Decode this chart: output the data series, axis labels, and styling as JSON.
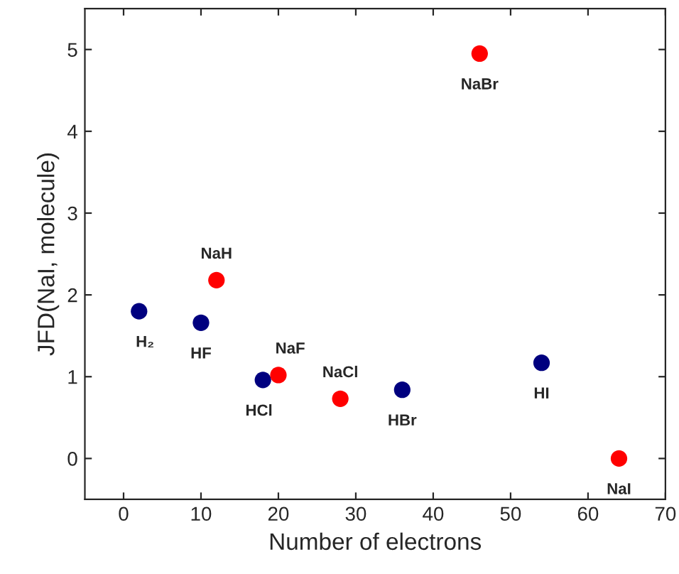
{
  "chart_data": {
    "type": "scatter",
    "xlabel": "Number of electrons",
    "ylabel": "JFD(NaI, molecule)",
    "xlim": [
      -5,
      70
    ],
    "xticks": [
      0,
      10,
      20,
      30,
      40,
      50,
      60,
      70
    ],
    "ylim": [
      -0.5,
      5.5
    ],
    "yticks": [
      0,
      1,
      2,
      3,
      4,
      5
    ],
    "grid": false,
    "marker": "circle",
    "series": [
      {
        "color": "#00007f",
        "x": [
          2,
          10,
          18,
          36,
          54
        ],
        "values": [
          1.8,
          1.66,
          0.96,
          0.84,
          1.17
        ]
      },
      {
        "color": "#ff0000",
        "x": [
          12,
          20,
          28,
          46,
          64
        ],
        "values": [
          2.18,
          1.02,
          0.73,
          4.95,
          0.0
        ]
      }
    ],
    "annotations": [
      {
        "text": "H₂",
        "x": 2,
        "y": 1.8
      },
      {
        "text": "HF",
        "x": 10,
        "y": 1.66
      },
      {
        "text": "HCl",
        "x": 18,
        "y": 0.96
      },
      {
        "text": "HBr",
        "x": 36,
        "y": 0.84
      },
      {
        "text": "HI",
        "x": 54,
        "y": 1.17
      },
      {
        "text": "NaH",
        "x": 12,
        "y": 2.18
      },
      {
        "text": "NaF",
        "x": 20,
        "y": 1.02
      },
      {
        "text": "NaCl",
        "x": 28,
        "y": 0.73
      },
      {
        "text": "NaBr",
        "x": 46,
        "y": 4.95
      },
      {
        "text": "NaI",
        "x": 64,
        "y": 0.0
      }
    ]
  }
}
